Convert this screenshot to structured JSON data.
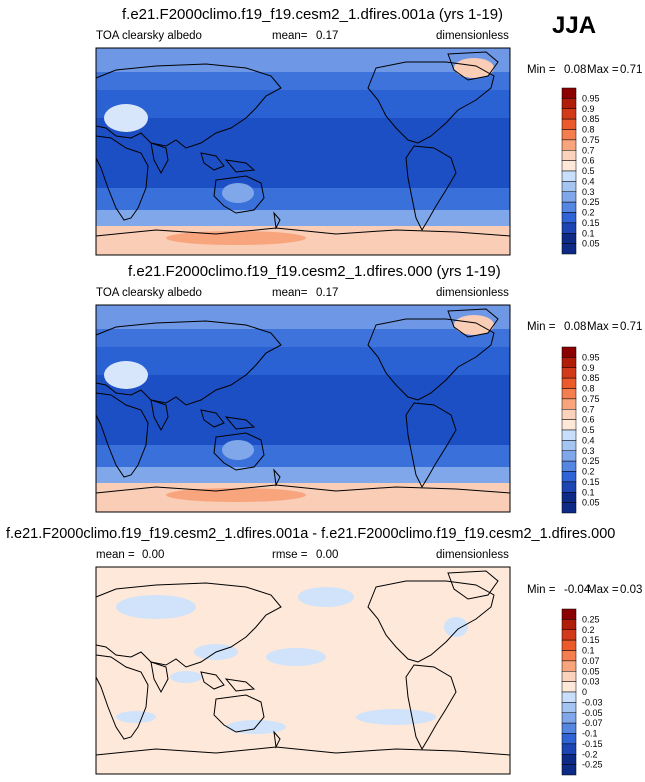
{
  "season": "JJA",
  "panels": [
    {
      "title": "f.e21.F2000climo.f19_f19.cesm2_1.dfires.001a (yrs 1-19)",
      "left_label": "TOA clearsky albedo",
      "stat_label": "mean=",
      "stat_value": "0.17",
      "units": "dimensionless",
      "min_label": "Min =",
      "min_value": "0.08",
      "max_label": "Max =",
      "max_value": "0.71",
      "colorbar": [
        "0.95",
        "0.9",
        "0.85",
        "0.8",
        "0.75",
        "0.7",
        "0.6",
        "0.5",
        "0.4",
        "0.3",
        "0.25",
        "0.2",
        "0.15",
        "0.1",
        "0.05"
      ]
    },
    {
      "title": "f.e21.F2000climo.f19_f19.cesm2_1.dfires.000 (yrs 1-19)",
      "left_label": "TOA clearsky albedo",
      "stat_label": "mean=",
      "stat_value": "0.17",
      "units": "dimensionless",
      "min_label": "Min =",
      "min_value": "0.08",
      "max_label": "Max =",
      "max_value": "0.71",
      "colorbar": [
        "0.95",
        "0.9",
        "0.85",
        "0.8",
        "0.75",
        "0.7",
        "0.6",
        "0.5",
        "0.4",
        "0.3",
        "0.25",
        "0.2",
        "0.15",
        "0.1",
        "0.05"
      ]
    },
    {
      "title": "f.e21.F2000climo.f19_f19.cesm2_1.dfires.001a - f.e21.F2000climo.f19_f19.cesm2_1.dfires.000",
      "left_label": "mean =",
      "left_value": "0.00",
      "stat_label": "rmse =",
      "stat_value": "0.00",
      "units": "dimensionless",
      "min_label": "Min =",
      "min_value": "-0.04",
      "max_label": "Max =",
      "max_value": "0.03",
      "colorbar": [
        "0.25",
        "0.2",
        "0.15",
        "0.1",
        "0.07",
        "0.05",
        "0.03",
        "0",
        "-0.03",
        "-0.05",
        "-0.07",
        "-0.1",
        "-0.15",
        "-0.2",
        "-0.25"
      ]
    }
  ],
  "chart_data": {
    "type": "heatmap",
    "colors": {
      "seq": [
        "#8b0000",
        "#b01e0a",
        "#d33a1a",
        "#ec5a2c",
        "#f47e4f",
        "#f8a57e",
        "#fbd2bb",
        "#fde8da",
        "#c8defa",
        "#a4c4f2",
        "#7fa7ea",
        "#5586e2",
        "#2f63d6",
        "#1c45b3",
        "#0c2a86"
      ],
      "diff": [
        "#8b0000",
        "#b01e0a",
        "#d33a1a",
        "#ec5a2c",
        "#f47e4f",
        "#f8a57e",
        "#fbd2bb",
        "#fde8da",
        "#c8defa",
        "#a4c4f2",
        "#7fa7ea",
        "#5586e2",
        "#2f63d6",
        "#1c45b3",
        "#0c2a86"
      ],
      "ocean_deep": "#1d4fc4",
      "ocean_mid": "#2a62d4",
      "land_bright": "#d7e6fb",
      "antarctic": "#f9cdb6",
      "diff_bg": "#fde8da",
      "diff_neg": "#d0e3fa"
    }
  }
}
